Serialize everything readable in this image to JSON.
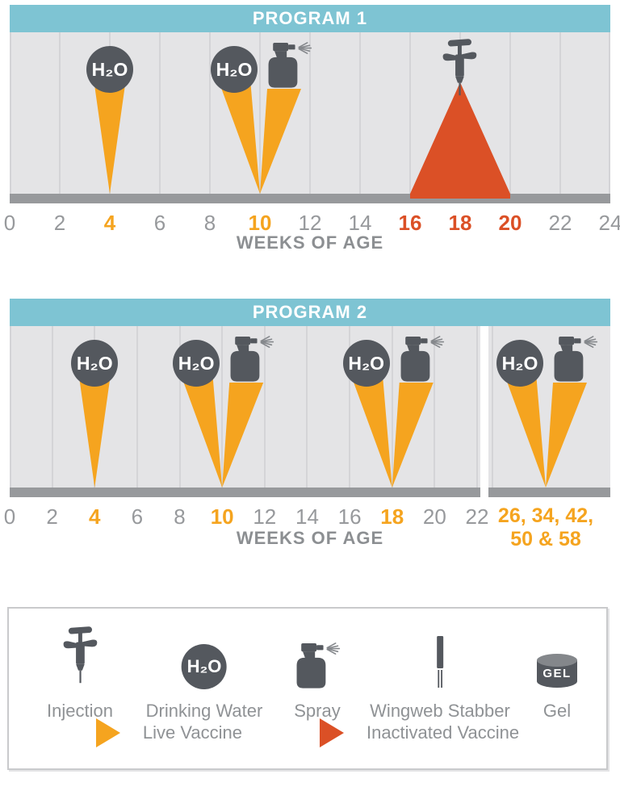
{
  "colors": {
    "header_teal": "#7ec4d3",
    "chart_bg": "#e4e4e6",
    "gridline": "#d4d4d7",
    "baseline_gray": "#97999c",
    "icon_dark_gray": "#54585e",
    "icon_light_gray": "#84878b",
    "mist_gray": "#85888c",
    "live_orange": "#f5a41f",
    "inactivated_red": "#db5026",
    "tick_gray": "#97999c",
    "text_gray": "#8f9295",
    "white": "#ffffff"
  },
  "h2o_label": "H₂O",
  "gel_label": "GEL",
  "program1": {
    "title": "PROGRAM 1",
    "axis_title": "WEEKS OF AGE",
    "max_week": 24,
    "ticks": [
      {
        "label": "0",
        "week": 0,
        "style": "gray"
      },
      {
        "label": "2",
        "week": 2,
        "style": "gray"
      },
      {
        "label": "4",
        "week": 4,
        "style": "orange"
      },
      {
        "label": "6",
        "week": 6,
        "style": "gray"
      },
      {
        "label": "8",
        "week": 8,
        "style": "gray"
      },
      {
        "label": "10",
        "week": 10,
        "style": "orange"
      },
      {
        "label": "12",
        "week": 12,
        "style": "gray"
      },
      {
        "label": "14",
        "week": 14,
        "style": "gray"
      },
      {
        "label": "16",
        "week": 16,
        "style": "red"
      },
      {
        "label": "18",
        "week": 18,
        "style": "red"
      },
      {
        "label": "20",
        "week": 20,
        "style": "red"
      },
      {
        "label": "22",
        "week": 22,
        "style": "gray"
      },
      {
        "label": "24",
        "week": 24,
        "style": "gray"
      }
    ],
    "events": [
      {
        "methods": [
          "drinking-water"
        ],
        "vaccine": "live",
        "apex_week": 4
      },
      {
        "methods": [
          "drinking-water",
          "spray"
        ],
        "vaccine": "live",
        "apex_week": 10
      },
      {
        "methods": [
          "injection"
        ],
        "vaccine": "inactivated",
        "center_week": 18,
        "base_start_week": 16,
        "base_end_week": 20
      }
    ]
  },
  "program2": {
    "title": "PROGRAM 2",
    "axis_title": "WEEKS OF AGE",
    "main_max_week": 22,
    "extended_tick_line1": "26, 34, 42,",
    "extended_tick_line2": "50 & 58",
    "ticks": [
      {
        "label": "0",
        "week": 0,
        "style": "gray"
      },
      {
        "label": "2",
        "week": 2,
        "style": "gray"
      },
      {
        "label": "4",
        "week": 4,
        "style": "orange"
      },
      {
        "label": "6",
        "week": 6,
        "style": "gray"
      },
      {
        "label": "8",
        "week": 8,
        "style": "gray"
      },
      {
        "label": "10",
        "week": 10,
        "style": "orange"
      },
      {
        "label": "12",
        "week": 12,
        "style": "gray"
      },
      {
        "label": "14",
        "week": 14,
        "style": "gray"
      },
      {
        "label": "16",
        "week": 16,
        "style": "gray"
      },
      {
        "label": "18",
        "week": 18,
        "style": "orange"
      },
      {
        "label": "20",
        "week": 20,
        "style": "gray"
      },
      {
        "label": "22",
        "week": 22,
        "style": "gray"
      },
      {
        "label": "26, 34, 42,",
        "week": "extended",
        "style": "orange wide"
      }
    ],
    "events": [
      {
        "methods": [
          "drinking-water"
        ],
        "vaccine": "live",
        "apex_week": 4
      },
      {
        "methods": [
          "drinking-water",
          "spray"
        ],
        "vaccine": "live",
        "apex_week": 10
      },
      {
        "methods": [
          "drinking-water",
          "spray"
        ],
        "vaccine": "live",
        "apex_week": 18
      },
      {
        "methods": [
          "drinking-water",
          "spray"
        ],
        "vaccine": "live",
        "apex_week": "extended"
      }
    ]
  },
  "legend": {
    "items": [
      {
        "icon": "injection",
        "label": "Injection"
      },
      {
        "icon": "drinking-water",
        "label": "Drinking Water"
      },
      {
        "icon": "spray",
        "label": "Spray"
      },
      {
        "icon": "wingweb-stabber",
        "label": "Wingweb Stabber"
      },
      {
        "icon": "gel",
        "label": "Gel"
      }
    ],
    "vaccines": [
      {
        "key": "live",
        "label": "Live Vaccine",
        "color": "#f5a41f"
      },
      {
        "key": "inactivated",
        "label": "Inactivated Vaccine",
        "color": "#db5026"
      }
    ]
  },
  "chart_data": {
    "type": "timeline",
    "xlabel": "WEEKS OF AGE",
    "programs": [
      {
        "name": "PROGRAM 1",
        "x_ticks": [
          0,
          2,
          4,
          6,
          8,
          10,
          12,
          14,
          16,
          18,
          20,
          22,
          24
        ],
        "highlighted_ticks_orange": [
          4,
          10
        ],
        "highlighted_ticks_red": [
          16,
          18,
          20
        ],
        "events": [
          {
            "week": 4,
            "methods": [
              "Drinking Water"
            ],
            "vaccine": "Live Vaccine"
          },
          {
            "week": 10,
            "methods": [
              "Drinking Water",
              "Spray"
            ],
            "vaccine": "Live Vaccine"
          },
          {
            "week": 18,
            "week_range": [
              16,
              20
            ],
            "methods": [
              "Injection"
            ],
            "vaccine": "Inactivated Vaccine"
          }
        ]
      },
      {
        "name": "PROGRAM 2",
        "x_ticks": [
          0,
          2,
          4,
          6,
          8,
          10,
          12,
          14,
          16,
          18,
          20,
          22,
          "26, 34, 42, 50 & 58"
        ],
        "highlighted_ticks_orange": [
          4,
          10,
          18,
          "26, 34, 42, 50 & 58"
        ],
        "highlighted_ticks_red": [],
        "events": [
          {
            "week": 4,
            "methods": [
              "Drinking Water"
            ],
            "vaccine": "Live Vaccine"
          },
          {
            "week": 10,
            "methods": [
              "Drinking Water",
              "Spray"
            ],
            "vaccine": "Live Vaccine"
          },
          {
            "week": 18,
            "methods": [
              "Drinking Water",
              "Spray"
            ],
            "vaccine": "Live Vaccine"
          },
          {
            "weeks_label": "26, 34, 42, 50 & 58",
            "methods": [
              "Drinking Water",
              "Spray"
            ],
            "vaccine": "Live Vaccine"
          }
        ]
      }
    ]
  }
}
